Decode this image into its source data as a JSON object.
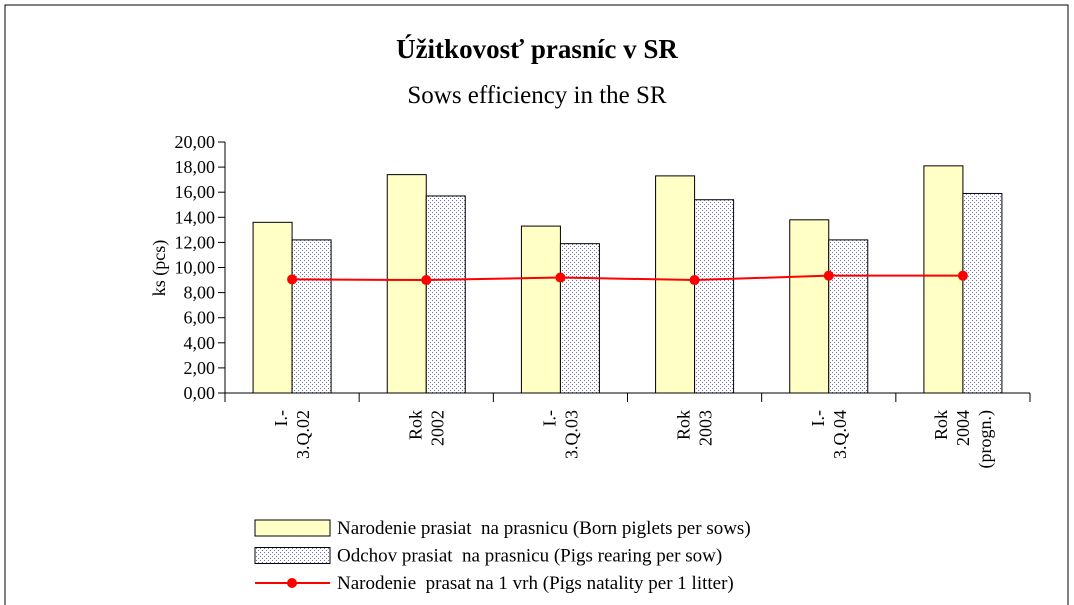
{
  "chart_data": {
    "type": "bar-line",
    "title": "Úžitkovosť prasníc v SR",
    "subtitle": "Sows efficiency in the SR",
    "y_label": "ks (pcs)",
    "categories": [
      [
        "I.-",
        "3.Q.02"
      ],
      [
        "Rok",
        "2002"
      ],
      [
        "I.-",
        "3.Q.03"
      ],
      [
        "Rok",
        "2003"
      ],
      [
        "I.-",
        "3.Q.04"
      ],
      [
        "Rok",
        "2004",
        "(progn.)"
      ]
    ],
    "series": [
      {
        "name": "Narodenie prasiat  na prasnicu (Born piglets per sows)",
        "type": "bar",
        "color": "#ffffc6",
        "values": [
          13.6,
          17.4,
          13.3,
          17.3,
          13.8,
          18.1
        ]
      },
      {
        "name": "Odchov prasiat  na prasnicu (Pigs rearing per sow)",
        "type": "bar",
        "pattern": "dots",
        "color": "#7070b8",
        "values": [
          12.2,
          15.7,
          11.9,
          15.4,
          12.2,
          15.9
        ]
      },
      {
        "name": "Narodenie  prasat na 1 vrh (Pigs natality per 1 litter)",
        "type": "line",
        "color": "#ff0000",
        "values": [
          9.05,
          9.0,
          9.2,
          9.0,
          9.35,
          9.35
        ]
      }
    ],
    "ylim": [
      0,
      20
    ],
    "yticks": [
      {
        "value": 0,
        "label": "0,00"
      },
      {
        "value": 2,
        "label": "2,00"
      },
      {
        "value": 4,
        "label": "4,00"
      },
      {
        "value": 6,
        "label": "6,00"
      },
      {
        "value": 8,
        "label": "8,00"
      },
      {
        "value": 10,
        "label": "10,00"
      },
      {
        "value": 12,
        "label": "12,00"
      },
      {
        "value": 14,
        "label": "14,00"
      },
      {
        "value": 16,
        "label": "16,00"
      },
      {
        "value": 18,
        "label": "18,00"
      },
      {
        "value": 20,
        "label": "20,00"
      }
    ],
    "legend": "bottom"
  }
}
